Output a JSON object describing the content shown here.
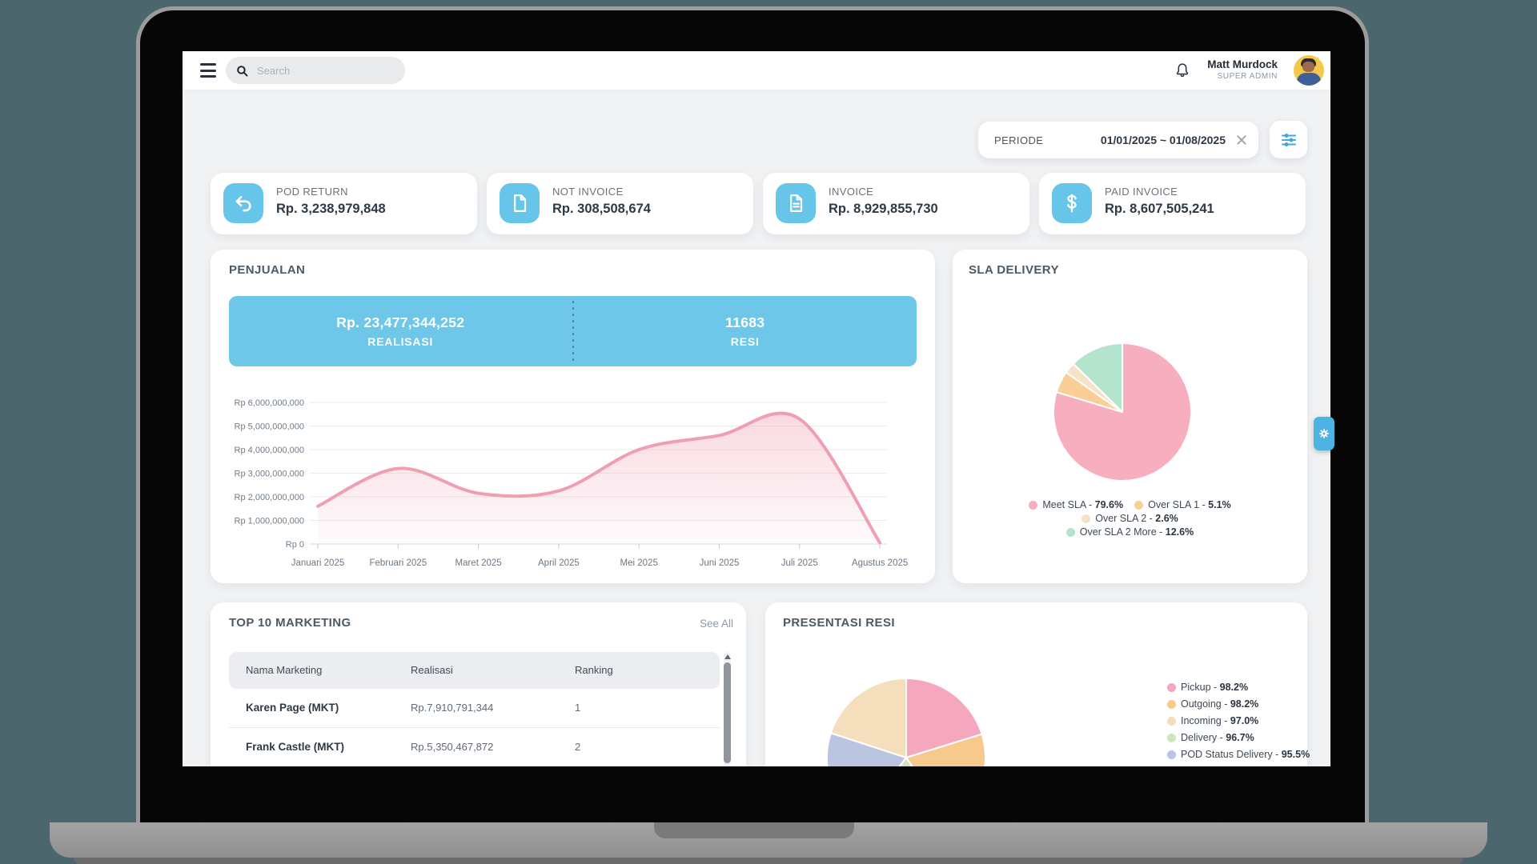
{
  "window": {
    "background_color": "#4c666e",
    "device": "laptop-mockup"
  },
  "topbar": {
    "menu_icon": "hamburger-menu-icon",
    "search": {
      "placeholder": "Search",
      "icon": "search-icon"
    },
    "bell_icon": "bell-icon",
    "user": {
      "name": "Matt Murdock",
      "role": "SUPER ADMIN",
      "avatar_icon": "user-avatar"
    }
  },
  "filter": {
    "label": "PERIODE",
    "value": "01/01/2025 ~ 01/08/2025",
    "clear_icon": "close-icon",
    "settings_icon": "filter-sliders-icon",
    "accent_color": "#3fa9dc"
  },
  "stat_cards": [
    {
      "title": "POD RETURN",
      "value": "Rp. 3,238,979,848",
      "icon": "return-arrow-icon",
      "icon_bg": "#67c5e9"
    },
    {
      "title": "NOT INVOICE",
      "value": "Rp. 308,508,674",
      "icon": "file-icon",
      "icon_bg": "#67c5e9"
    },
    {
      "title": "INVOICE",
      "value": "Rp. 8,929,855,730",
      "icon": "file-lines-icon",
      "icon_bg": "#67c5e9"
    },
    {
      "title": "PAID INVOICE",
      "value": "Rp. 8,607,505,241",
      "icon": "dollar-icon",
      "icon_bg": "#67c5e9"
    }
  ],
  "penjualan": {
    "title": "PENJUALAN",
    "realisasi_value": "Rp. 23,477,344,252",
    "realisasi_label": "REALISASI",
    "resi_value": "11683",
    "resi_label": "RESI",
    "banner_color": "#6ec7e9"
  },
  "sla": {
    "title": "SLA DELIVERY"
  },
  "marketing": {
    "title": "TOP 10 MARKETING",
    "see_all": "See All",
    "columns": [
      "Nama Marketing",
      "Realisasi",
      "Ranking"
    ],
    "rows": [
      {
        "name": "Karen Page (MKT)",
        "realisasi": "Rp.7,910,791,344",
        "ranking": "1"
      },
      {
        "name": "Frank Castle (MKT)",
        "realisasi": "Rp.5,350,467,872",
        "ranking": "2"
      }
    ]
  },
  "presentasi": {
    "title": "PRESENTASI RESI"
  },
  "floating": {
    "gear_icon": "gear-icon",
    "color": "#4db2e4"
  },
  "chart_data": [
    {
      "type": "area",
      "title": "PENJUALAN",
      "x_labels": [
        "Januari 2025",
        "Februari 2025",
        "Maret 2025",
        "April 2025",
        "Mei 2025",
        "Juni 2025",
        "Juli 2025",
        "Agustus 2025"
      ],
      "values": [
        1600000000,
        3200000000,
        2150000000,
        2250000000,
        4000000000,
        4600000000,
        5300000000,
        50000000
      ],
      "y_ticks": [
        "Rp 6,000,000,000",
        "Rp 5,000,000,000",
        "Rp 4,000,000,000",
        "Rp 3,000,000,000",
        "Rp 2,000,000,000",
        "Rp 1,000,000,000",
        "Rp 0"
      ],
      "ylim": [
        0,
        6000000000
      ],
      "grid": true,
      "line_color": "#f09fb2",
      "fill_color": "#f3b3c3"
    },
    {
      "type": "pie",
      "title": "SLA DELIVERY",
      "slices": [
        {
          "label": "Meet SLA",
          "pct": "79.6",
          "color": "#f7afc0"
        },
        {
          "label": "Over SLA 1",
          "pct": "5.1",
          "color": "#f9cf97"
        },
        {
          "label": "Over SLA 2",
          "pct": "2.6",
          "color": "#f4e3c5"
        },
        {
          "label": "Over SLA 2 More",
          "pct": "12.6",
          "color": "#b5e4ce"
        }
      ],
      "draw_order": [
        0,
        1,
        2,
        3
      ],
      "legend_rows": [
        [
          0,
          1
        ],
        [
          2
        ],
        [
          3
        ]
      ],
      "legend_position": "bottom-center"
    },
    {
      "type": "pie",
      "title": "PRESENTASI RESI",
      "slices": [
        {
          "label": "Pickup",
          "pct": "98.2",
          "color": "#f5a8bd"
        },
        {
          "label": "Outgoing",
          "pct": "98.2",
          "color": "#f8c98c"
        },
        {
          "label": "Incoming",
          "pct": "97.0",
          "color": "#f5debb"
        },
        {
          "label": "Delivery",
          "pct": "96.7",
          "color": "#cde6bb"
        },
        {
          "label": "POD Status Delivery",
          "pct": "95.5",
          "color": "#bbc5e1"
        }
      ],
      "draw_order": [
        0,
        1,
        3,
        4,
        2
      ],
      "legend_position": "right"
    }
  ]
}
